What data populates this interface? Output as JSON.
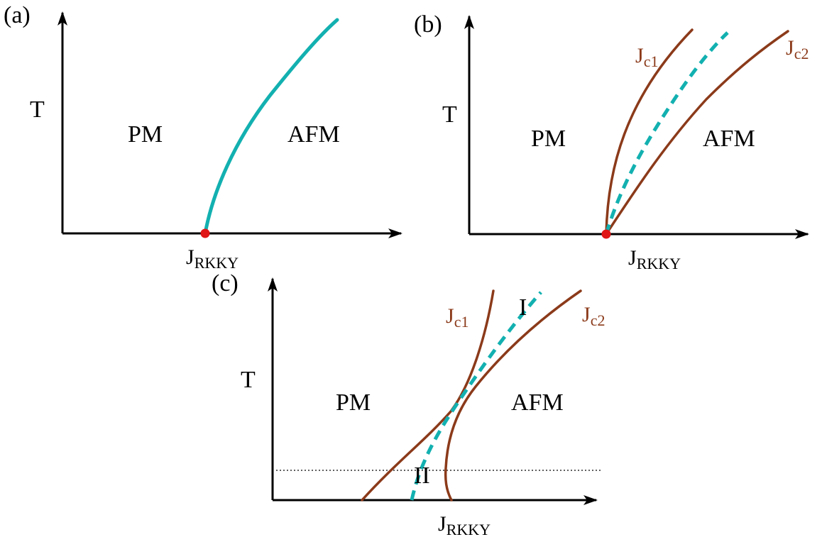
{
  "colors": {
    "transition_line": "#13b0b0",
    "crossover_line": "#8b3a1a",
    "critical_point": "#e01515",
    "axes": "#000000"
  },
  "panels": [
    {
      "label": "(a)",
      "y_axis_label": "T",
      "x_axis_label": {
        "main": "J",
        "sub": "RKKY"
      },
      "region_left": "PM",
      "region_right": "AFM"
    },
    {
      "label": "(b)",
      "y_axis_label": "T",
      "x_axis_label": {
        "main": "J",
        "sub": "RKKY"
      },
      "region_left": "PM",
      "region_right": "AFM",
      "curve_left": {
        "main": "J",
        "sub": "c1"
      },
      "curve_right": {
        "main": "J",
        "sub": "c2"
      }
    },
    {
      "label": "(c)",
      "y_axis_label": "T",
      "x_axis_label": {
        "main": "J",
        "sub": "RKKY"
      },
      "region_left": "PM",
      "region_right": "AFM",
      "curve_left": {
        "main": "J",
        "sub": "c1"
      },
      "curve_right": {
        "main": "J",
        "sub": "c2"
      },
      "region_upper": "I",
      "region_lower": "II"
    }
  ]
}
